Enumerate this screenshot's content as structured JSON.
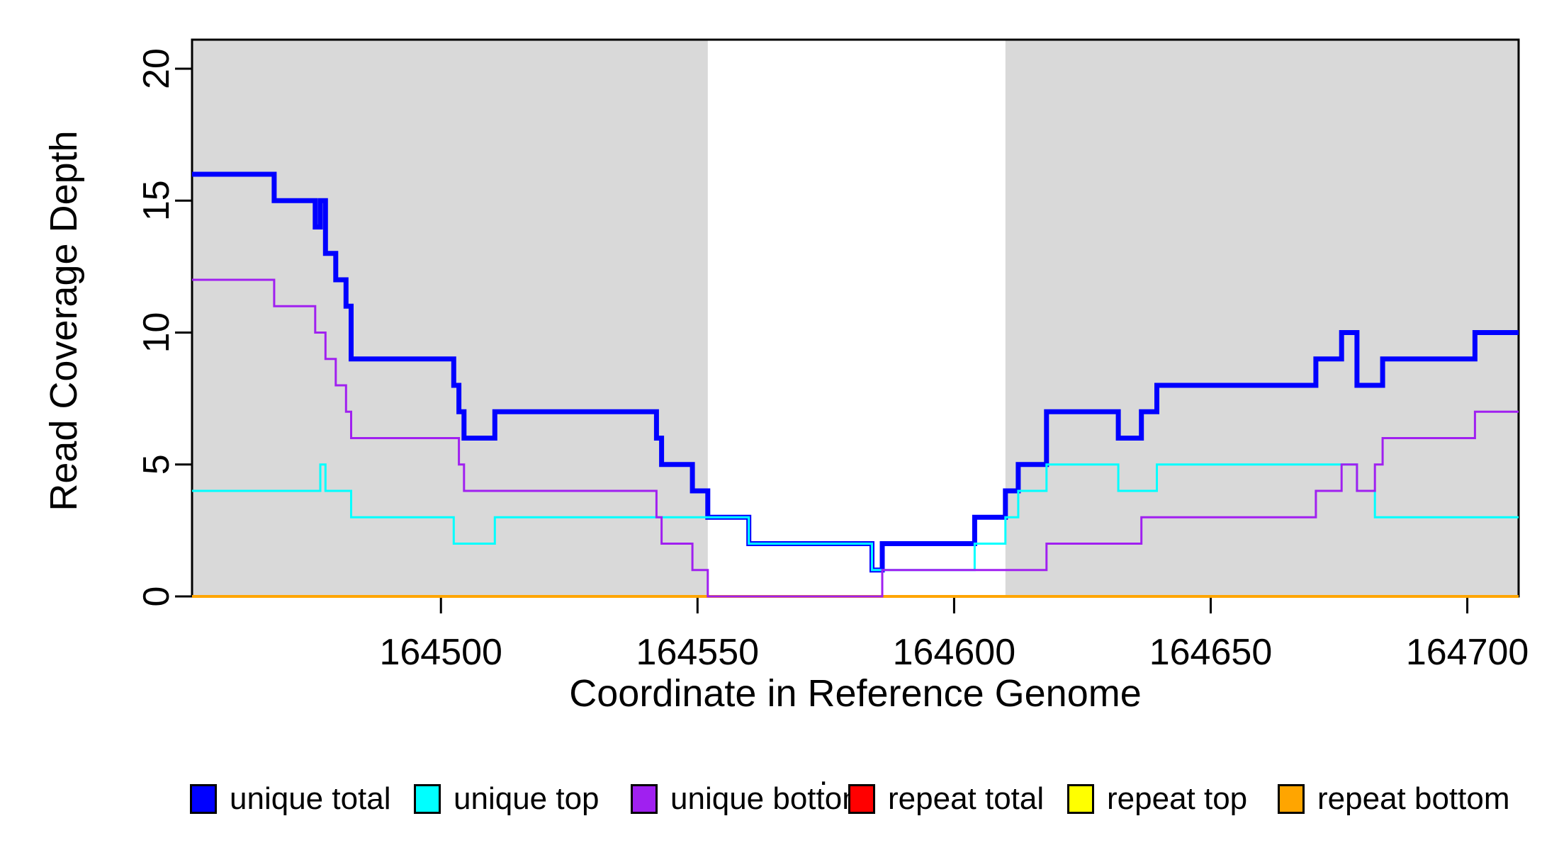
{
  "chart": {
    "xlabel": "Coordinate in Reference Genome",
    "ylabel": "Read Coverage Depth"
  },
  "chart_data": {
    "type": "line",
    "subtype": "step-after",
    "title": "",
    "xlabel": "Coordinate in Reference Genome",
    "ylabel": "Read Coverage Depth",
    "xlim": [
      164451.5,
      164710
    ],
    "ylim": [
      0,
      21.1
    ],
    "grid": false,
    "x_ticks": [
      164500,
      164550,
      164600,
      164650,
      164700
    ],
    "x_tick_labels": [
      "164500",
      "164550",
      "164600",
      "164650",
      "164700"
    ],
    "y_ticks": [
      0,
      5,
      10,
      15,
      20
    ],
    "y_tick_labels": [
      "0",
      "5",
      "10",
      "15",
      "20"
    ],
    "shaded_regions": [
      {
        "label": "shaded-region-left",
        "x0": 164451.5,
        "x1": 164552.0,
        "color": "#D9D9D9"
      },
      {
        "label": "shaded-region-right",
        "x0": 164610.0,
        "x1": 164710.0,
        "color": "#D9D9D9"
      }
    ],
    "series": [
      {
        "name": "repeat total",
        "color": "#FF0000",
        "width": 3,
        "z": 1,
        "steps": [
          [
            164451.5,
            0
          ]
        ]
      },
      {
        "name": "repeat top",
        "color": "#FFFF00",
        "width": 3,
        "z": 2,
        "steps": [
          [
            164451.5,
            0
          ]
        ]
      },
      {
        "name": "repeat bottom",
        "color": "#FFA500",
        "width": 4,
        "z": 3,
        "steps": [
          [
            164451.5,
            0
          ]
        ]
      },
      {
        "name": "unique total",
        "color": "#0000FF",
        "width": 7,
        "z": 4,
        "steps": [
          [
            164451.5,
            16
          ],
          [
            164467.5,
            15
          ],
          [
            164475.5,
            14
          ],
          [
            164476.5,
            15
          ],
          [
            164477.5,
            13
          ],
          [
            164479.5,
            12
          ],
          [
            164481.5,
            11
          ],
          [
            164482.5,
            9
          ],
          [
            164502.5,
            8
          ],
          [
            164503.5,
            7
          ],
          [
            164504.5,
            6
          ],
          [
            164510.5,
            7
          ],
          [
            164542,
            6
          ],
          [
            164543,
            5
          ],
          [
            164549,
            4
          ],
          [
            164552,
            3
          ],
          [
            164560,
            2
          ],
          [
            164584,
            1
          ],
          [
            164586,
            2
          ],
          [
            164604,
            3
          ],
          [
            164610,
            4
          ],
          [
            164612.5,
            5
          ],
          [
            164618,
            7
          ],
          [
            164632,
            6
          ],
          [
            164636.5,
            7
          ],
          [
            164639.5,
            8
          ],
          [
            164670.5,
            9
          ],
          [
            164675.5,
            10
          ],
          [
            164678.5,
            8
          ],
          [
            164683.5,
            9
          ],
          [
            164701.5,
            10
          ]
        ]
      },
      {
        "name": "unique top",
        "color": "#00FFFF",
        "width": 3,
        "z": 5,
        "steps": [
          [
            164451.5,
            4
          ],
          [
            164476.5,
            5
          ],
          [
            164477.5,
            4
          ],
          [
            164482.5,
            3
          ],
          [
            164502.5,
            2
          ],
          [
            164510.5,
            3
          ],
          [
            164560,
            2
          ],
          [
            164584,
            1
          ],
          [
            164604,
            2
          ],
          [
            164610,
            3
          ],
          [
            164612.5,
            4
          ],
          [
            164618,
            5
          ],
          [
            164632,
            4
          ],
          [
            164639.5,
            5
          ],
          [
            164678.5,
            4
          ],
          [
            164682,
            3
          ]
        ]
      },
      {
        "name": "unique bottom",
        "color": "#A020F0",
        "width": 3,
        "z": 6,
        "steps": [
          [
            164451.5,
            12
          ],
          [
            164467.5,
            11
          ],
          [
            164475.5,
            10
          ],
          [
            164477.5,
            9
          ],
          [
            164479.5,
            8
          ],
          [
            164481.5,
            7
          ],
          [
            164482.5,
            6
          ],
          [
            164503.5,
            5
          ],
          [
            164504.5,
            4
          ],
          [
            164542,
            3
          ],
          [
            164543,
            2
          ],
          [
            164549,
            1
          ],
          [
            164552,
            0
          ],
          [
            164586,
            1
          ],
          [
            164618,
            2
          ],
          [
            164636.5,
            3
          ],
          [
            164670.5,
            4
          ],
          [
            164675.5,
            5
          ],
          [
            164678.5,
            4
          ],
          [
            164682,
            5
          ],
          [
            164683.5,
            6
          ],
          [
            164701.5,
            7
          ]
        ]
      }
    ],
    "legend": {
      "position": "bottom",
      "title": ".",
      "entries": [
        {
          "label": "unique total",
          "color": "#0000FF"
        },
        {
          "label": "unique top",
          "color": "#00FFFF"
        },
        {
          "label": "unique bottom",
          "color": "#A020F0"
        },
        {
          "label": "repeat total",
          "color": "#FF0000"
        },
        {
          "label": "repeat top",
          "color": "#FFFF00"
        },
        {
          "label": "repeat bottom",
          "color": "#FFA500"
        }
      ]
    },
    "axis_color": "#000000",
    "plot_background": "#FFFFFF"
  }
}
